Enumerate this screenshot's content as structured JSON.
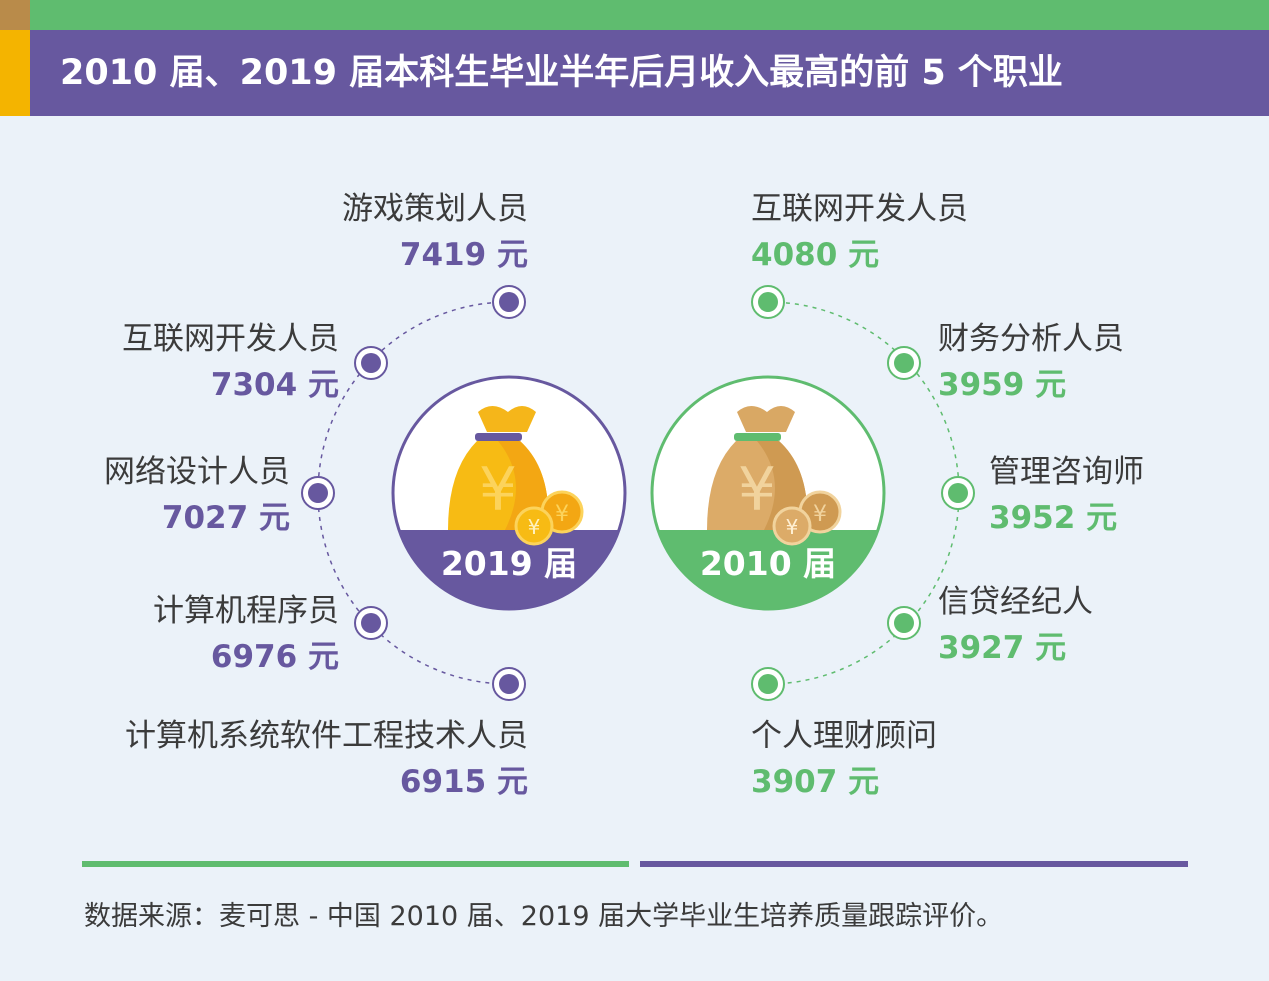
{
  "title": "2010 届、2019 届本科生毕业半年后月收入最高的前 5 个职业",
  "colors": {
    "purple": "#67589f",
    "green": "#5fbc6f",
    "gold": "#f4b400",
    "background": "#ebf2f9"
  },
  "y2019": {
    "label": "2019 届",
    "items": [
      {
        "occupation": "游戏策划人员",
        "salary": "7419 元"
      },
      {
        "occupation": "互联网开发人员",
        "salary": "7304 元"
      },
      {
        "occupation": "网络设计人员",
        "salary": "7027 元"
      },
      {
        "occupation": "计算机程序员",
        "salary": "6976 元"
      },
      {
        "occupation": "计算机系统软件工程技术人员",
        "salary": "6915 元"
      }
    ]
  },
  "y2010": {
    "label": "2010 届",
    "items": [
      {
        "occupation": "互联网开发人员",
        "salary": "4080 元"
      },
      {
        "occupation": "财务分析人员",
        "salary": "3959 元"
      },
      {
        "occupation": "管理咨询师",
        "salary": "3952 元"
      },
      {
        "occupation": "信贷经纪人",
        "salary": "3927 元"
      },
      {
        "occupation": "个人理财顾问",
        "salary": "3907 元"
      }
    ]
  },
  "source": "数据来源：麦可思 - 中国 2010 届、2019 届大学毕业生培养质量跟踪评价。"
}
